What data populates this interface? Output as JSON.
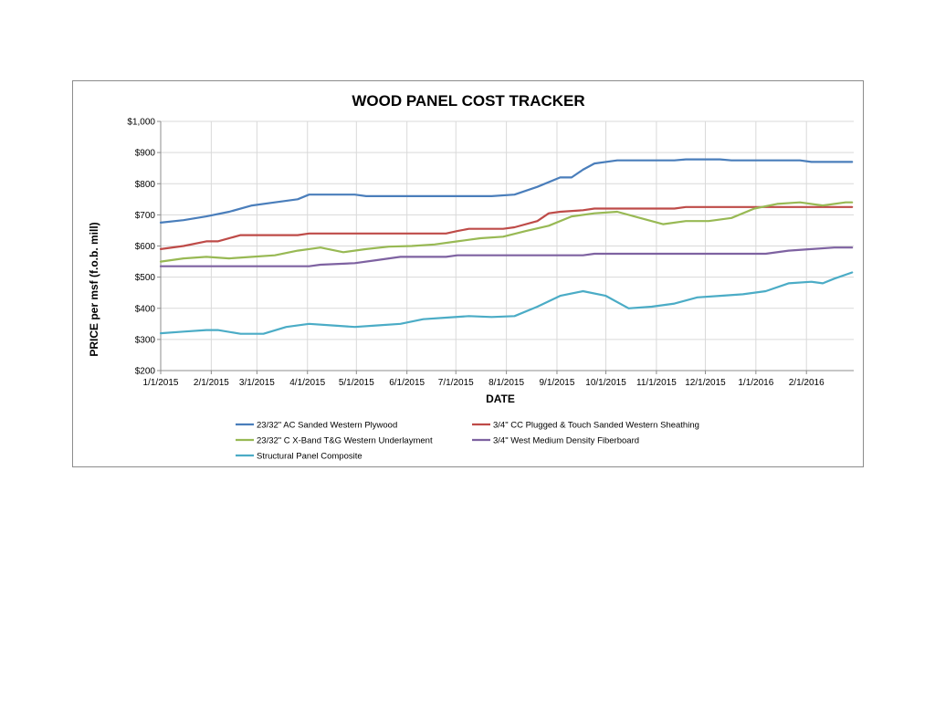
{
  "chart_data": {
    "type": "line",
    "title": "WOOD PANEL COST TRACKER",
    "xlabel": "DATE",
    "ylabel": "PRICE per msf (f.o.b. mill)",
    "ylim": [
      200,
      1000
    ],
    "y_ticks": [
      "$200",
      "$300",
      "$400",
      "$500",
      "$600",
      "$700",
      "$800",
      "$900",
      "$1,000"
    ],
    "x_ticks": [
      "1/1/2015",
      "2/1/2015",
      "3/1/2015",
      "4/1/2015",
      "5/1/2015",
      "6/1/2015",
      "7/1/2015",
      "8/1/2015",
      "9/1/2015",
      "10/1/2015",
      "11/1/2015",
      "12/1/2015",
      "1/1/2016",
      "2/1/2016"
    ],
    "x_range": [
      "2015-01-01",
      "2016-03-01"
    ],
    "grid": true,
    "legend_position": "bottom",
    "series": [
      {
        "name": "23/32\" AC Sanded Western Plywood",
        "color": "#4a7ebb",
        "points": [
          [
            "2015-01-01",
            675
          ],
          [
            "2015-01-15",
            683
          ],
          [
            "2015-01-29",
            695
          ],
          [
            "2015-02-12",
            710
          ],
          [
            "2015-02-26",
            730
          ],
          [
            "2015-03-12",
            740
          ],
          [
            "2015-03-26",
            750
          ],
          [
            "2015-04-02",
            765
          ],
          [
            "2015-04-30",
            765
          ],
          [
            "2015-05-07",
            760
          ],
          [
            "2015-07-23",
            760
          ],
          [
            "2015-08-06",
            765
          ],
          [
            "2015-08-20",
            790
          ],
          [
            "2015-09-03",
            820
          ],
          [
            "2015-09-10",
            820
          ],
          [
            "2015-09-17",
            845
          ],
          [
            "2015-09-24",
            865
          ],
          [
            "2015-10-08",
            875
          ],
          [
            "2015-11-12",
            875
          ],
          [
            "2015-11-19",
            878
          ],
          [
            "2015-12-10",
            878
          ],
          [
            "2015-12-17",
            875
          ],
          [
            "2016-01-28",
            875
          ],
          [
            "2016-02-04",
            870
          ],
          [
            "2016-02-29",
            870
          ]
        ]
      },
      {
        "name": "3/4\" CC Plugged & Touch Sanded Western Sheathing",
        "color": "#be4b48",
        "points": [
          [
            "2015-01-01",
            590
          ],
          [
            "2015-01-15",
            600
          ],
          [
            "2015-01-29",
            615
          ],
          [
            "2015-02-05",
            615
          ],
          [
            "2015-02-19",
            635
          ],
          [
            "2015-03-26",
            635
          ],
          [
            "2015-04-02",
            640
          ],
          [
            "2015-06-25",
            640
          ],
          [
            "2015-07-02",
            648
          ],
          [
            "2015-07-09",
            655
          ],
          [
            "2015-07-30",
            655
          ],
          [
            "2015-08-06",
            660
          ],
          [
            "2015-08-20",
            680
          ],
          [
            "2015-08-27",
            705
          ],
          [
            "2015-09-03",
            710
          ],
          [
            "2015-09-17",
            715
          ],
          [
            "2015-09-24",
            720
          ],
          [
            "2015-11-12",
            720
          ],
          [
            "2015-11-19",
            725
          ],
          [
            "2016-02-29",
            725
          ]
        ]
      },
      {
        "name": "23/32\" C X-Band T&G Western Underlayment",
        "color": "#98b954",
        "points": [
          [
            "2015-01-01",
            550
          ],
          [
            "2015-01-15",
            560
          ],
          [
            "2015-01-29",
            565
          ],
          [
            "2015-02-12",
            560
          ],
          [
            "2015-02-26",
            565
          ],
          [
            "2015-03-12",
            570
          ],
          [
            "2015-03-26",
            585
          ],
          [
            "2015-04-09",
            595
          ],
          [
            "2015-04-23",
            580
          ],
          [
            "2015-05-07",
            590
          ],
          [
            "2015-05-21",
            598
          ],
          [
            "2015-06-04",
            600
          ],
          [
            "2015-06-18",
            605
          ],
          [
            "2015-07-02",
            615
          ],
          [
            "2015-07-16",
            625
          ],
          [
            "2015-07-30",
            630
          ],
          [
            "2015-08-13",
            648
          ],
          [
            "2015-08-27",
            665
          ],
          [
            "2015-09-10",
            695
          ],
          [
            "2015-09-24",
            705
          ],
          [
            "2015-10-08",
            710
          ],
          [
            "2015-10-22",
            690
          ],
          [
            "2015-11-05",
            670
          ],
          [
            "2015-11-19",
            680
          ],
          [
            "2015-12-03",
            680
          ],
          [
            "2015-12-17",
            690
          ],
          [
            "2015-12-31",
            720
          ],
          [
            "2016-01-14",
            735
          ],
          [
            "2016-01-28",
            740
          ],
          [
            "2016-02-11",
            730
          ],
          [
            "2016-02-25",
            740
          ],
          [
            "2016-02-29",
            740
          ]
        ]
      },
      {
        "name": "3/4\" West Medium Density Fiberboard",
        "color": "#7e62a1",
        "points": [
          [
            "2015-01-01",
            535
          ],
          [
            "2015-04-02",
            535
          ],
          [
            "2015-04-09",
            540
          ],
          [
            "2015-04-30",
            545
          ],
          [
            "2015-05-14",
            555
          ],
          [
            "2015-05-28",
            565
          ],
          [
            "2015-06-25",
            565
          ],
          [
            "2015-07-02",
            570
          ],
          [
            "2015-09-17",
            570
          ],
          [
            "2015-09-24",
            575
          ],
          [
            "2016-01-07",
            575
          ],
          [
            "2016-01-21",
            585
          ],
          [
            "2016-02-04",
            590
          ],
          [
            "2016-02-18",
            595
          ],
          [
            "2016-02-29",
            595
          ]
        ]
      },
      {
        "name": "Structural Panel Composite",
        "color": "#4bacc6",
        "points": [
          [
            "2015-01-01",
            320
          ],
          [
            "2015-01-15",
            325
          ],
          [
            "2015-01-29",
            330
          ],
          [
            "2015-02-05",
            330
          ],
          [
            "2015-02-19",
            318
          ],
          [
            "2015-03-05",
            318
          ],
          [
            "2015-03-19",
            340
          ],
          [
            "2015-04-02",
            350
          ],
          [
            "2015-04-16",
            345
          ],
          [
            "2015-04-30",
            340
          ],
          [
            "2015-05-14",
            345
          ],
          [
            "2015-05-28",
            350
          ],
          [
            "2015-06-11",
            365
          ],
          [
            "2015-06-25",
            370
          ],
          [
            "2015-07-09",
            375
          ],
          [
            "2015-07-23",
            372
          ],
          [
            "2015-08-06",
            375
          ],
          [
            "2015-08-20",
            405
          ],
          [
            "2015-09-03",
            440
          ],
          [
            "2015-09-17",
            455
          ],
          [
            "2015-10-01",
            440
          ],
          [
            "2015-10-15",
            400
          ],
          [
            "2015-10-29",
            405
          ],
          [
            "2015-11-12",
            415
          ],
          [
            "2015-11-26",
            435
          ],
          [
            "2015-12-10",
            440
          ],
          [
            "2015-12-24",
            445
          ],
          [
            "2016-01-07",
            455
          ],
          [
            "2016-01-21",
            480
          ],
          [
            "2016-02-04",
            485
          ],
          [
            "2016-02-11",
            480
          ],
          [
            "2016-02-18",
            495
          ],
          [
            "2016-02-29",
            515
          ]
        ]
      }
    ]
  }
}
